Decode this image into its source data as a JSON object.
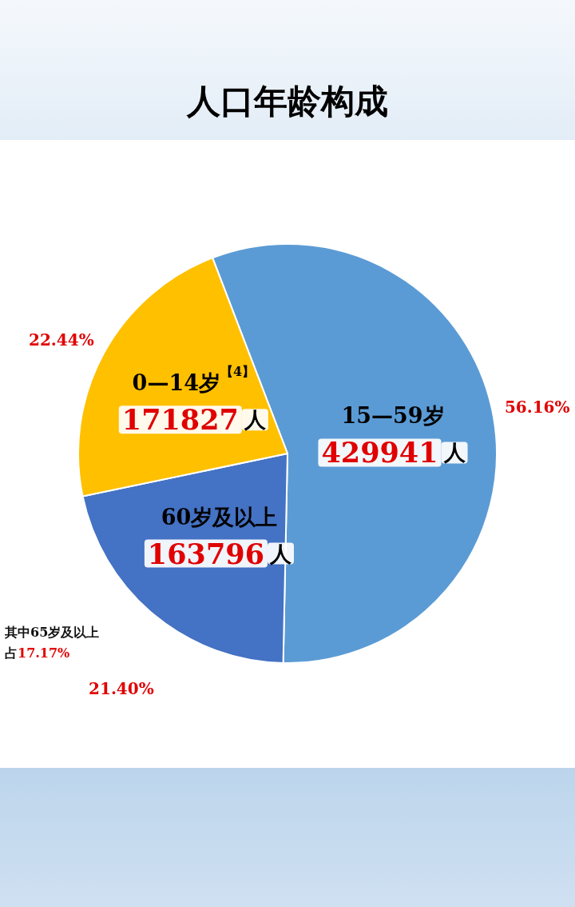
{
  "chart_data": {
    "type": "pie",
    "title": "人口年龄构成",
    "categories": [
      "15—59岁",
      "60岁及以上",
      "0—14岁$^{【4】}$"
    ],
    "values": [
      429941,
      163796,
      171827
    ],
    "value_labels": [
      "429941人",
      "163796人",
      "171827人"
    ],
    "colors": [
      "#5b9bd5",
      "#4472c4",
      "#ffc000"
    ],
    "annotations": [
      {
        "text": "56.16%",
        "x": "15—59岁"
      },
      {
        "text": "21.40%",
        "x": "60岁及以上"
      },
      {
        "text": "22.44%",
        "x": "0—14岁$^{【4】}$"
      },
      "其中65岁及以上占17.17%"
    ]
  }
}
